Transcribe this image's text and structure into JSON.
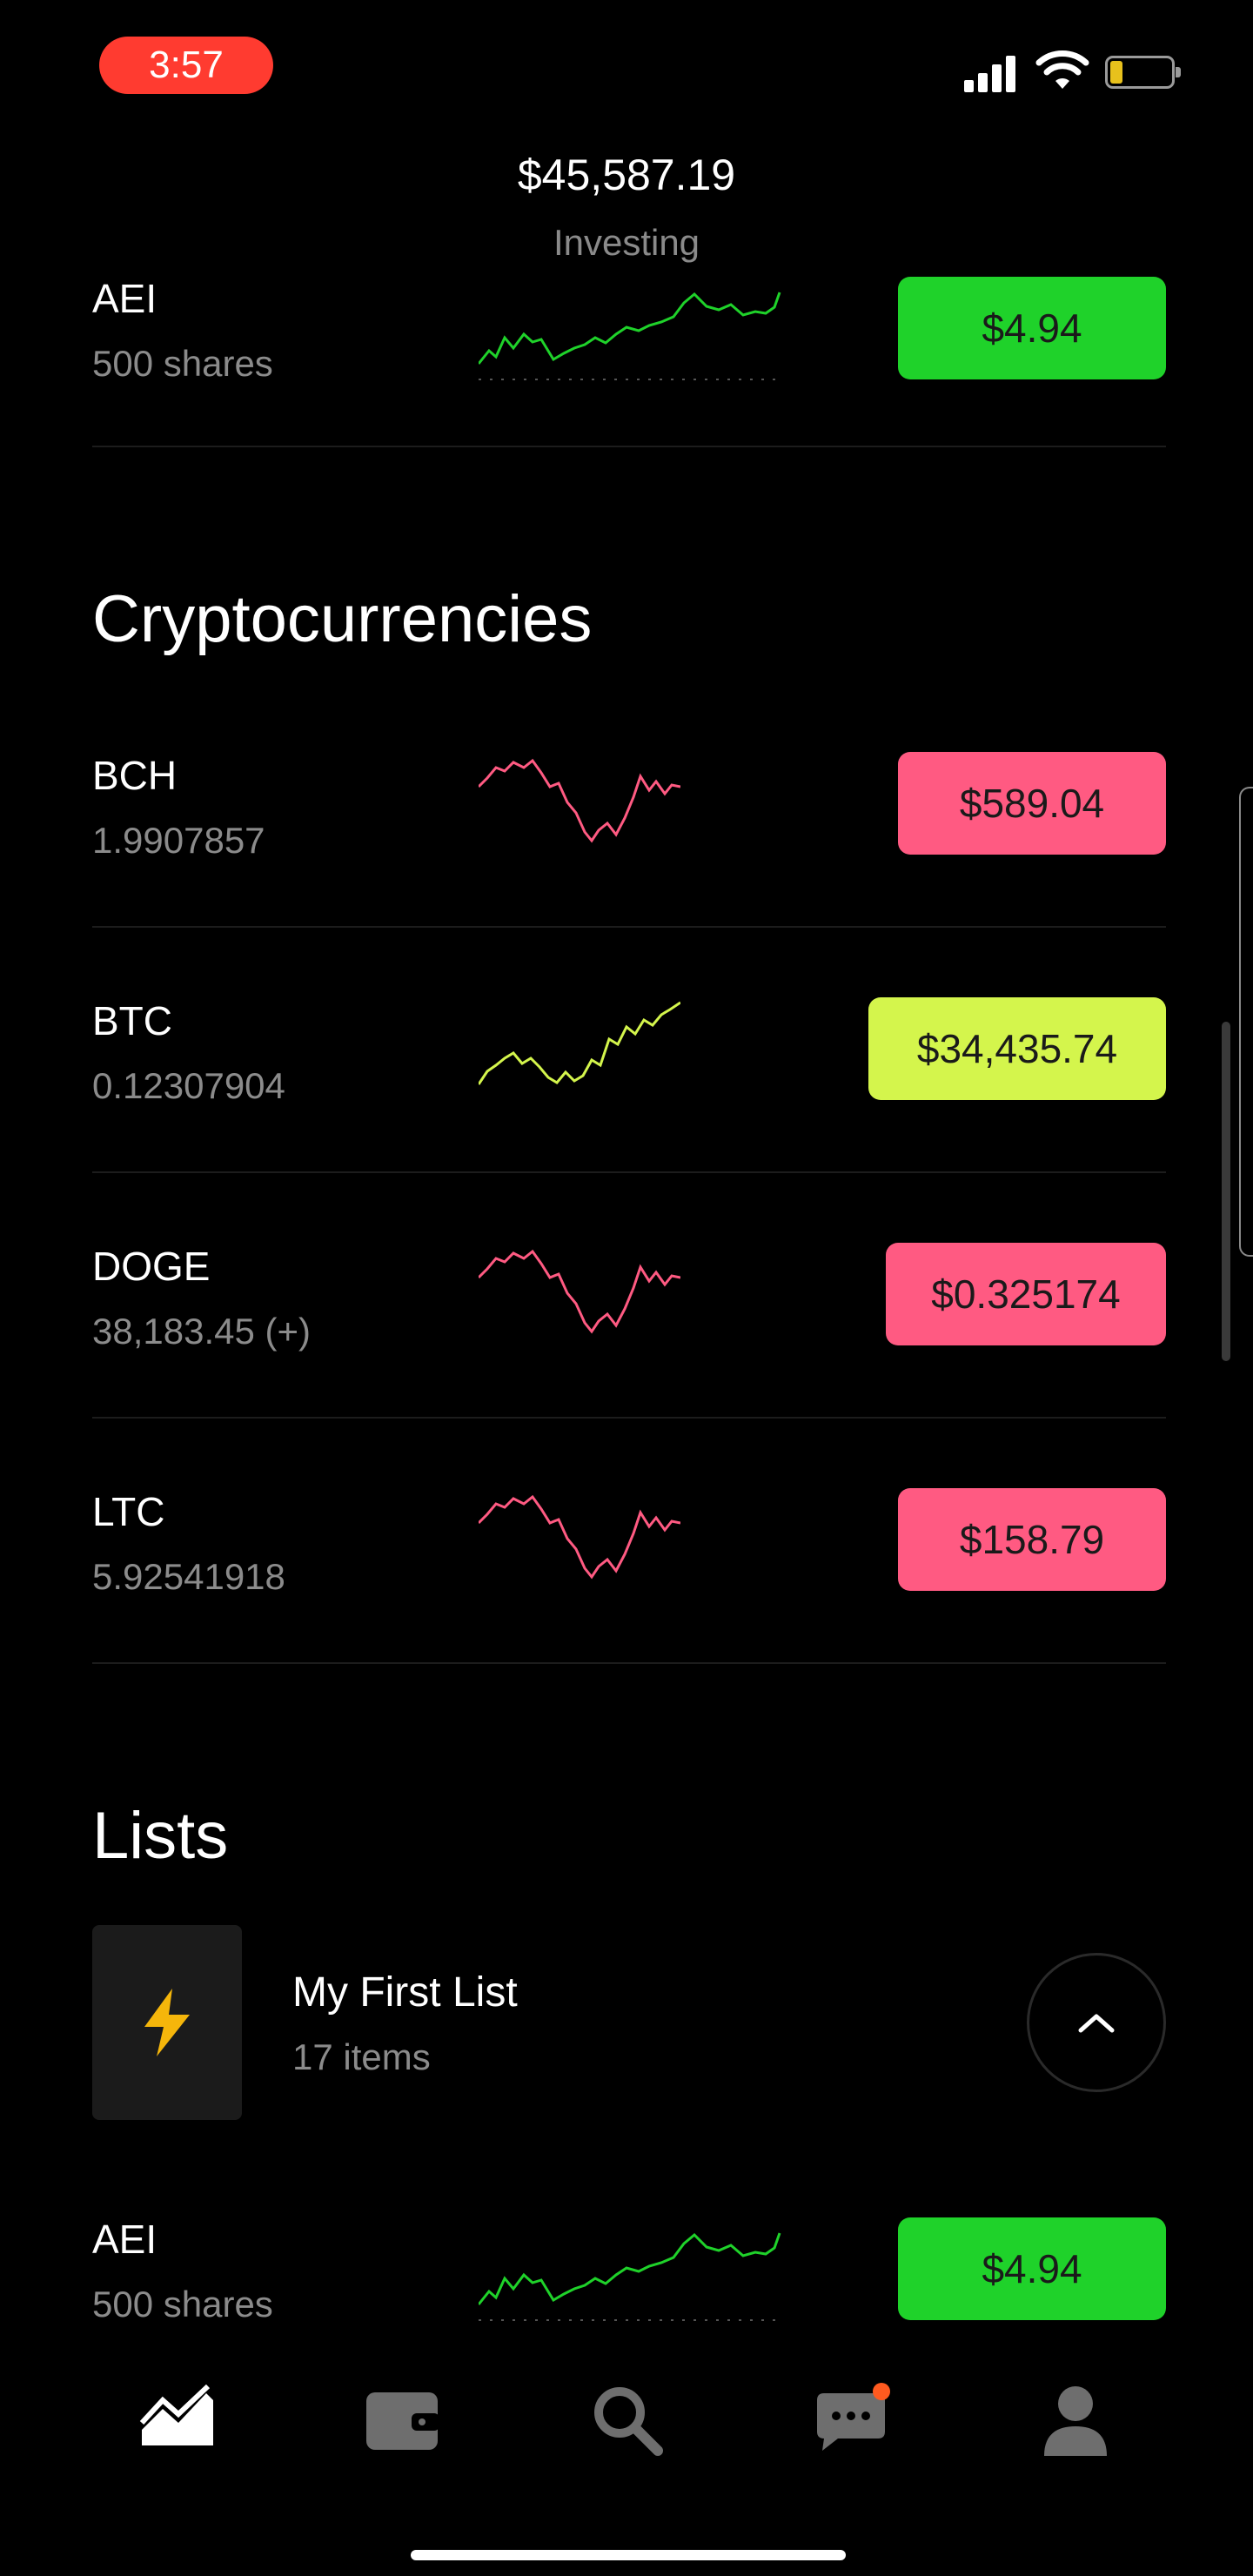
{
  "status_bar": {
    "time": "3:57",
    "time_pill_color": "#ff3b30"
  },
  "header": {
    "value": "$45,587.19",
    "label": "Investing"
  },
  "colors": {
    "up_green": "#1fd22a",
    "down_pink": "#ff5a82",
    "btc_yellow": "#d4f54c",
    "divider": "#1c1c1c"
  },
  "stocks_row": {
    "symbol": "AEI",
    "subtitle": "500 shares",
    "price": "$4.94",
    "color": "#1fd22a",
    "spark": "up-green"
  },
  "crypto": {
    "title": "Cryptocurrencies",
    "items": [
      {
        "symbol": "BCH",
        "subtitle": "1.9907857",
        "price": "$589.04",
        "color": "#ff5a82",
        "spark": "down-pink"
      },
      {
        "symbol": "BTC",
        "subtitle": "0.12307904",
        "price": "$34,435.74",
        "color": "#d4f54c",
        "spark": "up-yellow"
      },
      {
        "symbol": "DOGE",
        "subtitle": "38,183.45 (+)",
        "price": "$0.325174",
        "color": "#ff5a82",
        "spark": "down-pink"
      },
      {
        "symbol": "LTC",
        "subtitle": "5.92541918",
        "price": "$158.79",
        "color": "#ff5a82",
        "spark": "down-pink"
      }
    ]
  },
  "lists": {
    "title": "Lists",
    "card": {
      "icon": "lightning-icon",
      "name": "My First List",
      "count": "17 items"
    },
    "items": [
      {
        "symbol": "AEI",
        "subtitle": "500 shares",
        "price": "$4.94",
        "color": "#1fd22a",
        "spark": "up-green"
      }
    ]
  },
  "tab_bar": {
    "tabs": [
      {
        "icon": "chart-icon",
        "active": true
      },
      {
        "icon": "wallet-icon",
        "active": false
      },
      {
        "icon": "search-icon",
        "active": false
      },
      {
        "icon": "messages-icon",
        "active": false,
        "badge_color": "#ff5a1f"
      },
      {
        "icon": "profile-icon",
        "active": false
      }
    ]
  }
}
